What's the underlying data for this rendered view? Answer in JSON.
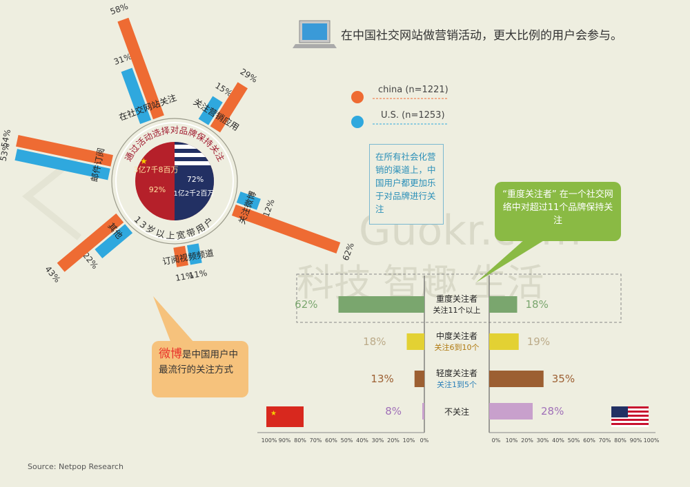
{
  "headline": "在中国社交网站做营销活动，更大比例的用户会参与。",
  "watermark": {
    "brand": "Guokr.com",
    "slogan": "科技 智趣 生活",
    "logo_text": "果壳"
  },
  "legend": {
    "china": {
      "label": "china (n=1221)",
      "color": "#ee6b33"
    },
    "us": {
      "label": "U.S. (n=1253)",
      "color": "#2fa8de"
    }
  },
  "center": {
    "china_users": "3亿7千8百万",
    "china_pct": "92%",
    "us_pct": "72%",
    "us_users": "1亿2千2百万",
    "ring_top": "通过活动选择对品牌保持关注",
    "ring_bottom": "13岁以上宽带用户"
  },
  "info_note": "在所有社会化营销的渠道上，中国用户都更加乐于对品牌进行关注",
  "heavy_note": "“重度关注者” 在一个社交网络中对超过11个品牌保持关注",
  "weibo_note": {
    "highlight": "微博",
    "rest": "是中国用户中最流行的关注方式"
  },
  "source": "Source: Netpop Research",
  "chart_data": [
    {
      "type": "bar",
      "title": "通过活动选择对品牌保持关注",
      "categories": [
        "邮件订阅",
        "在社交网站关注",
        "关注营销应用",
        "关注微博",
        "订阅视频频道",
        "其他"
      ],
      "series": [
        {
          "name": "china (n=1221)",
          "values": [
            54,
            58,
            29,
            62,
            11,
            43
          ],
          "labels": [
            "54%",
            "58%",
            "29%",
            "62%",
            "11%",
            "43%"
          ]
        },
        {
          "name": "U.S. (n=1253)",
          "values": [
            53,
            31,
            15,
            12,
            11,
            22
          ],
          "labels": [
            "53%",
            "31%",
            "15%",
            "12%",
            "11%",
            "22%"
          ]
        }
      ]
    },
    {
      "type": "bar",
      "categories": [
        {
          "name": "重度关注者",
          "sub": "关注11个以上"
        },
        {
          "name": "中度关注者",
          "sub": "关注6到10个"
        },
        {
          "name": "轻度关注者",
          "sub": "关注1到5个"
        },
        {
          "name": "不关注",
          "sub": ""
        }
      ],
      "colors": [
        "#7aa66e",
        "#e3d133",
        "#9c5f32",
        "#c8a0cc"
      ],
      "pct_colors": [
        "#7aa66e",
        "#bbaa88",
        "#9c5f32",
        "#a070b8"
      ],
      "series": [
        {
          "name": "china",
          "values": [
            62,
            18,
            13,
            8
          ],
          "labels": [
            "62%",
            "18%",
            "13%",
            "8%"
          ]
        },
        {
          "name": "us",
          "values": [
            18,
            19,
            35,
            28
          ],
          "labels": [
            "18%",
            "19%",
            "35%",
            "28%"
          ]
        }
      ],
      "left_ticks": [
        "100%",
        "90%",
        "80%",
        "70%",
        "60%",
        "50%",
        "40%",
        "30%",
        "20%",
        "10%",
        "0%"
      ],
      "right_ticks": [
        "0%",
        "10%",
        "20%",
        "30%",
        "40%",
        "50%",
        "60%",
        "70%",
        "80%",
        "90%",
        "100%"
      ],
      "xlim": [
        0,
        100
      ]
    }
  ]
}
